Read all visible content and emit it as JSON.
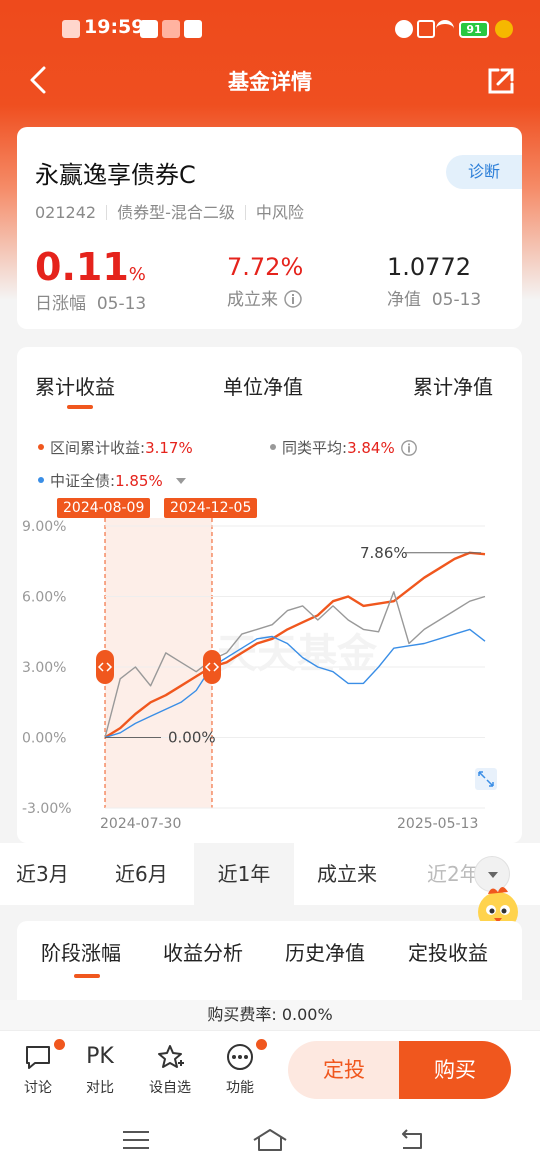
{
  "status": {
    "time": "19:59",
    "battery": "91"
  },
  "nav": {
    "title": "基金详情"
  },
  "fund": {
    "name": "永赢逸享债券C",
    "diagnose": "诊断",
    "code": "021242",
    "type": "债券型-混合二级",
    "risk": "中风险",
    "daily_change_value": "0.11",
    "daily_change_unit": "%",
    "daily_change_label": "日涨幅",
    "daily_change_date": "05-13",
    "since_inception_value": "7.72%",
    "since_inception_label": "成立来",
    "nav_value": "1.0772",
    "nav_label": "净值",
    "nav_date": "05-13"
  },
  "chart_tabs": [
    "累计收益",
    "单位净值",
    "累计净值"
  ],
  "legend": {
    "fund_label": "区间累计收益:",
    "fund_value": "3.17%",
    "peer_label": "同类平均:",
    "peer_value": "3.84%",
    "index_label": "中证全债:",
    "index_value": "1.85%"
  },
  "selection": {
    "start": "2024-08-09",
    "end": "2024-12-05"
  },
  "chart_data": {
    "type": "line",
    "y_ticks": [
      "9.00%",
      "6.00%",
      "3.00%",
      "0.00%",
      "-3.00%"
    ],
    "ylim": [
      -3,
      9
    ],
    "x_start": "2024-07-30",
    "x_end": "2025-05-13",
    "annotations": [
      "7.86%",
      "0.00%"
    ],
    "watermark": "天天基金",
    "series": [
      {
        "name": "区间累计收益",
        "color": "#f0571e",
        "values": [
          0,
          0.4,
          1.0,
          1.5,
          1.8,
          2.2,
          2.6,
          3.0,
          3.2,
          3.6,
          4.0,
          4.2,
          4.6,
          4.9,
          5.2,
          5.8,
          6.0,
          5.6,
          5.7,
          5.8,
          6.3,
          6.8,
          7.2,
          7.6,
          7.86,
          7.8
        ]
      },
      {
        "name": "同类平均",
        "color": "#999999",
        "values": [
          0,
          2.5,
          3.0,
          2.2,
          3.6,
          3.2,
          2.8,
          3.3,
          3.6,
          4.4,
          4.6,
          4.8,
          5.4,
          5.6,
          5.0,
          5.6,
          5.0,
          4.6,
          4.5,
          6.2,
          4.0,
          4.6,
          5.0,
          5.4,
          5.8,
          6.0
        ]
      },
      {
        "name": "中证全债",
        "color": "#3a8ee6",
        "values": [
          0,
          0.2,
          0.6,
          0.9,
          1.2,
          1.5,
          2.0,
          3.0,
          3.4,
          3.8,
          4.2,
          4.3,
          4.0,
          3.4,
          3.0,
          2.8,
          2.3,
          2.3,
          3.0,
          3.8,
          3.9,
          4.0,
          4.2,
          4.4,
          4.6,
          4.1
        ]
      }
    ]
  },
  "period_tabs": [
    "近3月",
    "近6月",
    "近1年",
    "成立来",
    "近2年"
  ],
  "section_tabs": [
    "阶段涨幅",
    "收益分析",
    "历史净值",
    "定投收益"
  ],
  "fee": "购买费率: 0.00%",
  "bottom": {
    "discuss": "讨论",
    "pk_icon": "PK",
    "compare": "对比",
    "watchlist": "设自选",
    "functions": "功能",
    "fixed_invest": "定投",
    "buy": "购买"
  }
}
